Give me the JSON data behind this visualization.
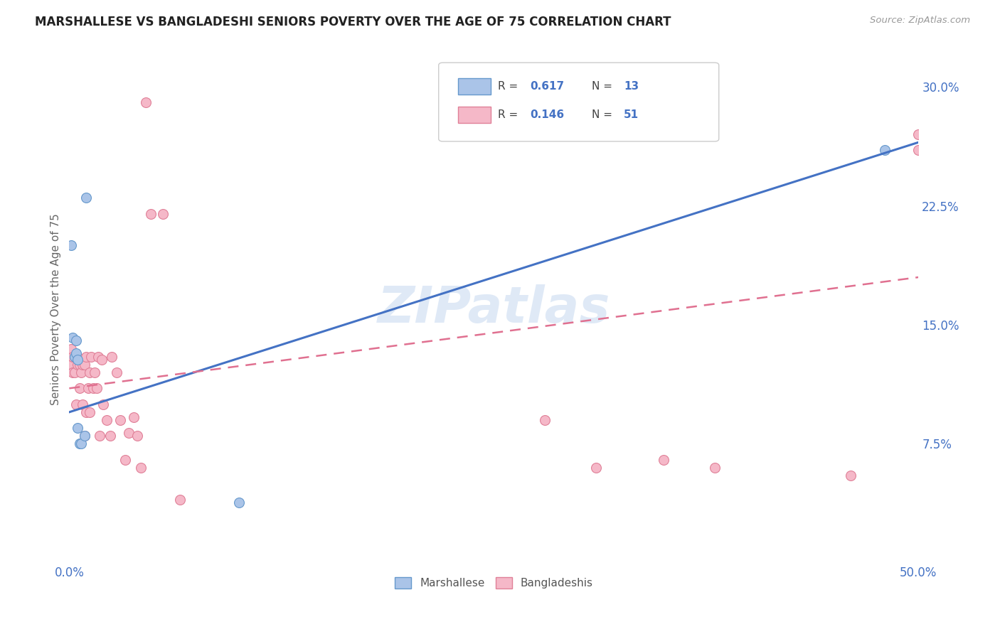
{
  "title": "MARSHALLESE VS BANGLADESHI SENIORS POVERTY OVER THE AGE OF 75 CORRELATION CHART",
  "source": "Source: ZipAtlas.com",
  "ylabel": "Seniors Poverty Over the Age of 75",
  "xlim": [
    0.0,
    0.5
  ],
  "ylim": [
    0.0,
    0.32
  ],
  "xtick_positions": [
    0.0,
    0.5
  ],
  "xticklabels": [
    "0.0%",
    "50.0%"
  ],
  "ytick_positions": [
    0.075,
    0.15,
    0.225,
    0.3
  ],
  "ytick_labels": [
    "7.5%",
    "15.0%",
    "22.5%",
    "30.0%"
  ],
  "background_color": "#ffffff",
  "grid_color": "#e0e0e0",
  "watermark": "ZIPatlas",
  "marshallese_color": "#aac4e8",
  "bangladeshi_color": "#f5b8c8",
  "marshallese_edge_color": "#6699cc",
  "bangladeshi_edge_color": "#e08098",
  "marshallese_line_color": "#4472c4",
  "bangladeshi_line_color": "#e07090",
  "legend_R1": "0.617",
  "legend_N1": "13",
  "legend_R2": "0.146",
  "legend_N2": "51",
  "marshallese_x": [
    0.001,
    0.002,
    0.003,
    0.004,
    0.004,
    0.005,
    0.005,
    0.006,
    0.007,
    0.009,
    0.01,
    0.1,
    0.48
  ],
  "marshallese_y": [
    0.2,
    0.142,
    0.13,
    0.14,
    0.132,
    0.085,
    0.128,
    0.075,
    0.075,
    0.08,
    0.23,
    0.038,
    0.26
  ],
  "bangladeshi_x": [
    0.001,
    0.001,
    0.002,
    0.002,
    0.003,
    0.003,
    0.004,
    0.004,
    0.005,
    0.005,
    0.006,
    0.006,
    0.007,
    0.008,
    0.008,
    0.009,
    0.009,
    0.01,
    0.01,
    0.011,
    0.012,
    0.012,
    0.013,
    0.014,
    0.015,
    0.016,
    0.017,
    0.018,
    0.019,
    0.02,
    0.022,
    0.024,
    0.025,
    0.028,
    0.03,
    0.033,
    0.035,
    0.038,
    0.04,
    0.042,
    0.045,
    0.048,
    0.055,
    0.065,
    0.28,
    0.31,
    0.35,
    0.38,
    0.46,
    0.5,
    0.5
  ],
  "bangladeshi_y": [
    0.125,
    0.135,
    0.12,
    0.13,
    0.12,
    0.13,
    0.13,
    0.1,
    0.13,
    0.125,
    0.125,
    0.11,
    0.12,
    0.125,
    0.1,
    0.125,
    0.08,
    0.13,
    0.095,
    0.11,
    0.12,
    0.095,
    0.13,
    0.11,
    0.12,
    0.11,
    0.13,
    0.08,
    0.128,
    0.1,
    0.09,
    0.08,
    0.13,
    0.12,
    0.09,
    0.065,
    0.082,
    0.092,
    0.08,
    0.06,
    0.29,
    0.22,
    0.22,
    0.04,
    0.09,
    0.06,
    0.065,
    0.06,
    0.055,
    0.26,
    0.27
  ]
}
